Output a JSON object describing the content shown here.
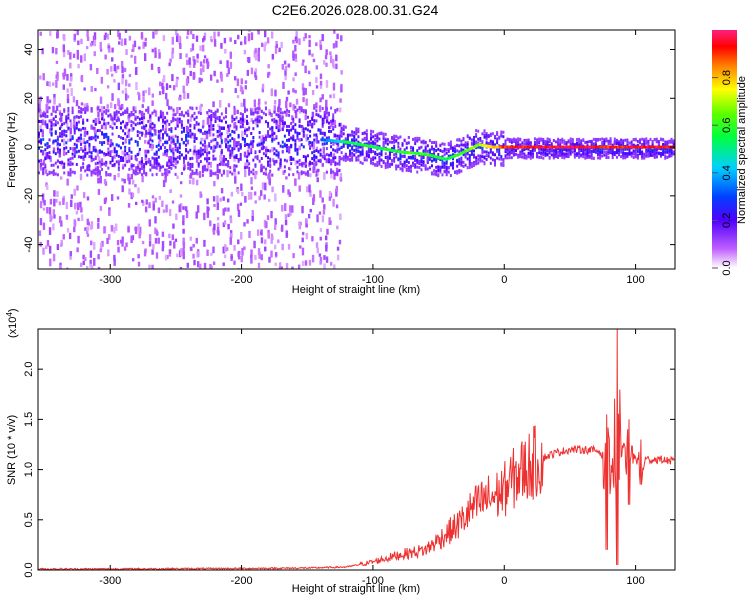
{
  "title": "C2E6.2026.028.00.31.G24",
  "chart_data": [
    {
      "type": "heatmap",
      "xlabel": "Height of straight line (km)",
      "ylabel": "Frequency (Hz)",
      "xlim": [
        -355,
        130
      ],
      "ylim": [
        -50,
        48
      ],
      "xticks": [
        -300,
        -200,
        -100,
        0,
        100
      ],
      "yticks": [
        -40,
        -20,
        0,
        20,
        40
      ],
      "colorbar": {
        "label": "Normalized spectral amplitude",
        "range": [
          0,
          1
        ],
        "ticks": [
          0.0,
          0.2,
          0.4,
          0.6,
          0.8
        ],
        "colormap": "rainbow (purple-blue-cyan-green-yellow-red-pink)"
      },
      "ridge": {
        "x": [
          -140,
          -120,
          -100,
          -80,
          -60,
          -45,
          -35,
          -20,
          -10,
          0,
          20,
          50,
          70,
          85,
          100,
          130
        ],
        "y": [
          3,
          2,
          0,
          -2,
          -3,
          -5,
          -3,
          1,
          0,
          0,
          0,
          0,
          0,
          0,
          0,
          0
        ],
        "amplitude": [
          0.3,
          0.55,
          0.55,
          0.6,
          0.6,
          0.55,
          0.6,
          0.7,
          0.8,
          0.9,
          0.95,
          0.95,
          0.95,
          0.9,
          0.95,
          0.95
        ]
      },
      "noise_region_xmax": -125
    },
    {
      "type": "line",
      "xlabel": "Height of straight line (km)",
      "ylabel": "SNR (10 * v/v)",
      "yscale_note": "(x10",
      "yscale_exp": "4",
      "xlim": [
        -355,
        130
      ],
      "ylim": [
        0,
        2.4
      ],
      "xticks": [
        -300,
        -200,
        -100,
        0,
        100
      ],
      "yticks": [
        "0.0",
        "0.5",
        "1.0",
        "1.5",
        "2.0"
      ],
      "series": [
        {
          "color": "#ee3030",
          "x": [
            -355,
            -300,
            -200,
            -150,
            -120,
            -100,
            -80,
            -60,
            -45,
            -35,
            -25,
            -15,
            -5,
            0,
            10,
            20,
            30,
            40,
            50,
            60,
            70,
            78,
            82,
            85,
            88,
            92,
            96,
            100,
            110,
            120,
            130
          ],
          "y": [
            0.01,
            0.01,
            0.015,
            0.02,
            0.03,
            0.08,
            0.15,
            0.2,
            0.35,
            0.45,
            0.6,
            0.7,
            0.75,
            0.8,
            0.95,
            1.05,
            1.12,
            1.17,
            1.2,
            1.2,
            1.19,
            1.15,
            1.0,
            1.1,
            1.2,
            1.25,
            1.15,
            1.12,
            1.1,
            1.1,
            1.08
          ]
        }
      ],
      "spikes": [
        {
          "x": 78,
          "high": 1.55,
          "low": 0.2
        },
        {
          "x": 86,
          "high": 2.4,
          "low": 0.05
        },
        {
          "x": 95,
          "high": 1.5,
          "low": 0.65
        },
        {
          "x": 104,
          "high": 1.3,
          "low": 0.85
        }
      ]
    }
  ]
}
